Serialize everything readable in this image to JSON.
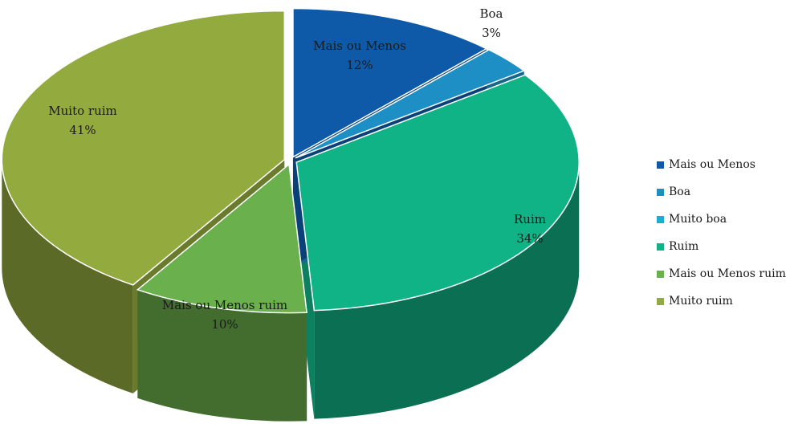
{
  "chart_data": {
    "type": "pie",
    "title": "",
    "slices": [
      {
        "name": "Mais ou Menos",
        "value": 12,
        "value_label": "12%",
        "color": "#0f5aa8"
      },
      {
        "name": "Boa",
        "value": 3,
        "value_label": "3%",
        "color": "#1d8fc4"
      },
      {
        "name": "Muito boa",
        "value": 0,
        "value_label": "",
        "color": "#1ab0cc"
      },
      {
        "name": "Ruim",
        "value": 34,
        "value_label": "34%",
        "color": "#10b386"
      },
      {
        "name": "Mais ou Menos ruim",
        "value": 10,
        "value_label": "10%",
        "color": "#6ab04c"
      },
      {
        "name": "Muito ruim",
        "value": 41,
        "value_label": "41%",
        "color": "#93ab3e"
      }
    ],
    "legend_position": "right",
    "style": "3d-exploded"
  }
}
